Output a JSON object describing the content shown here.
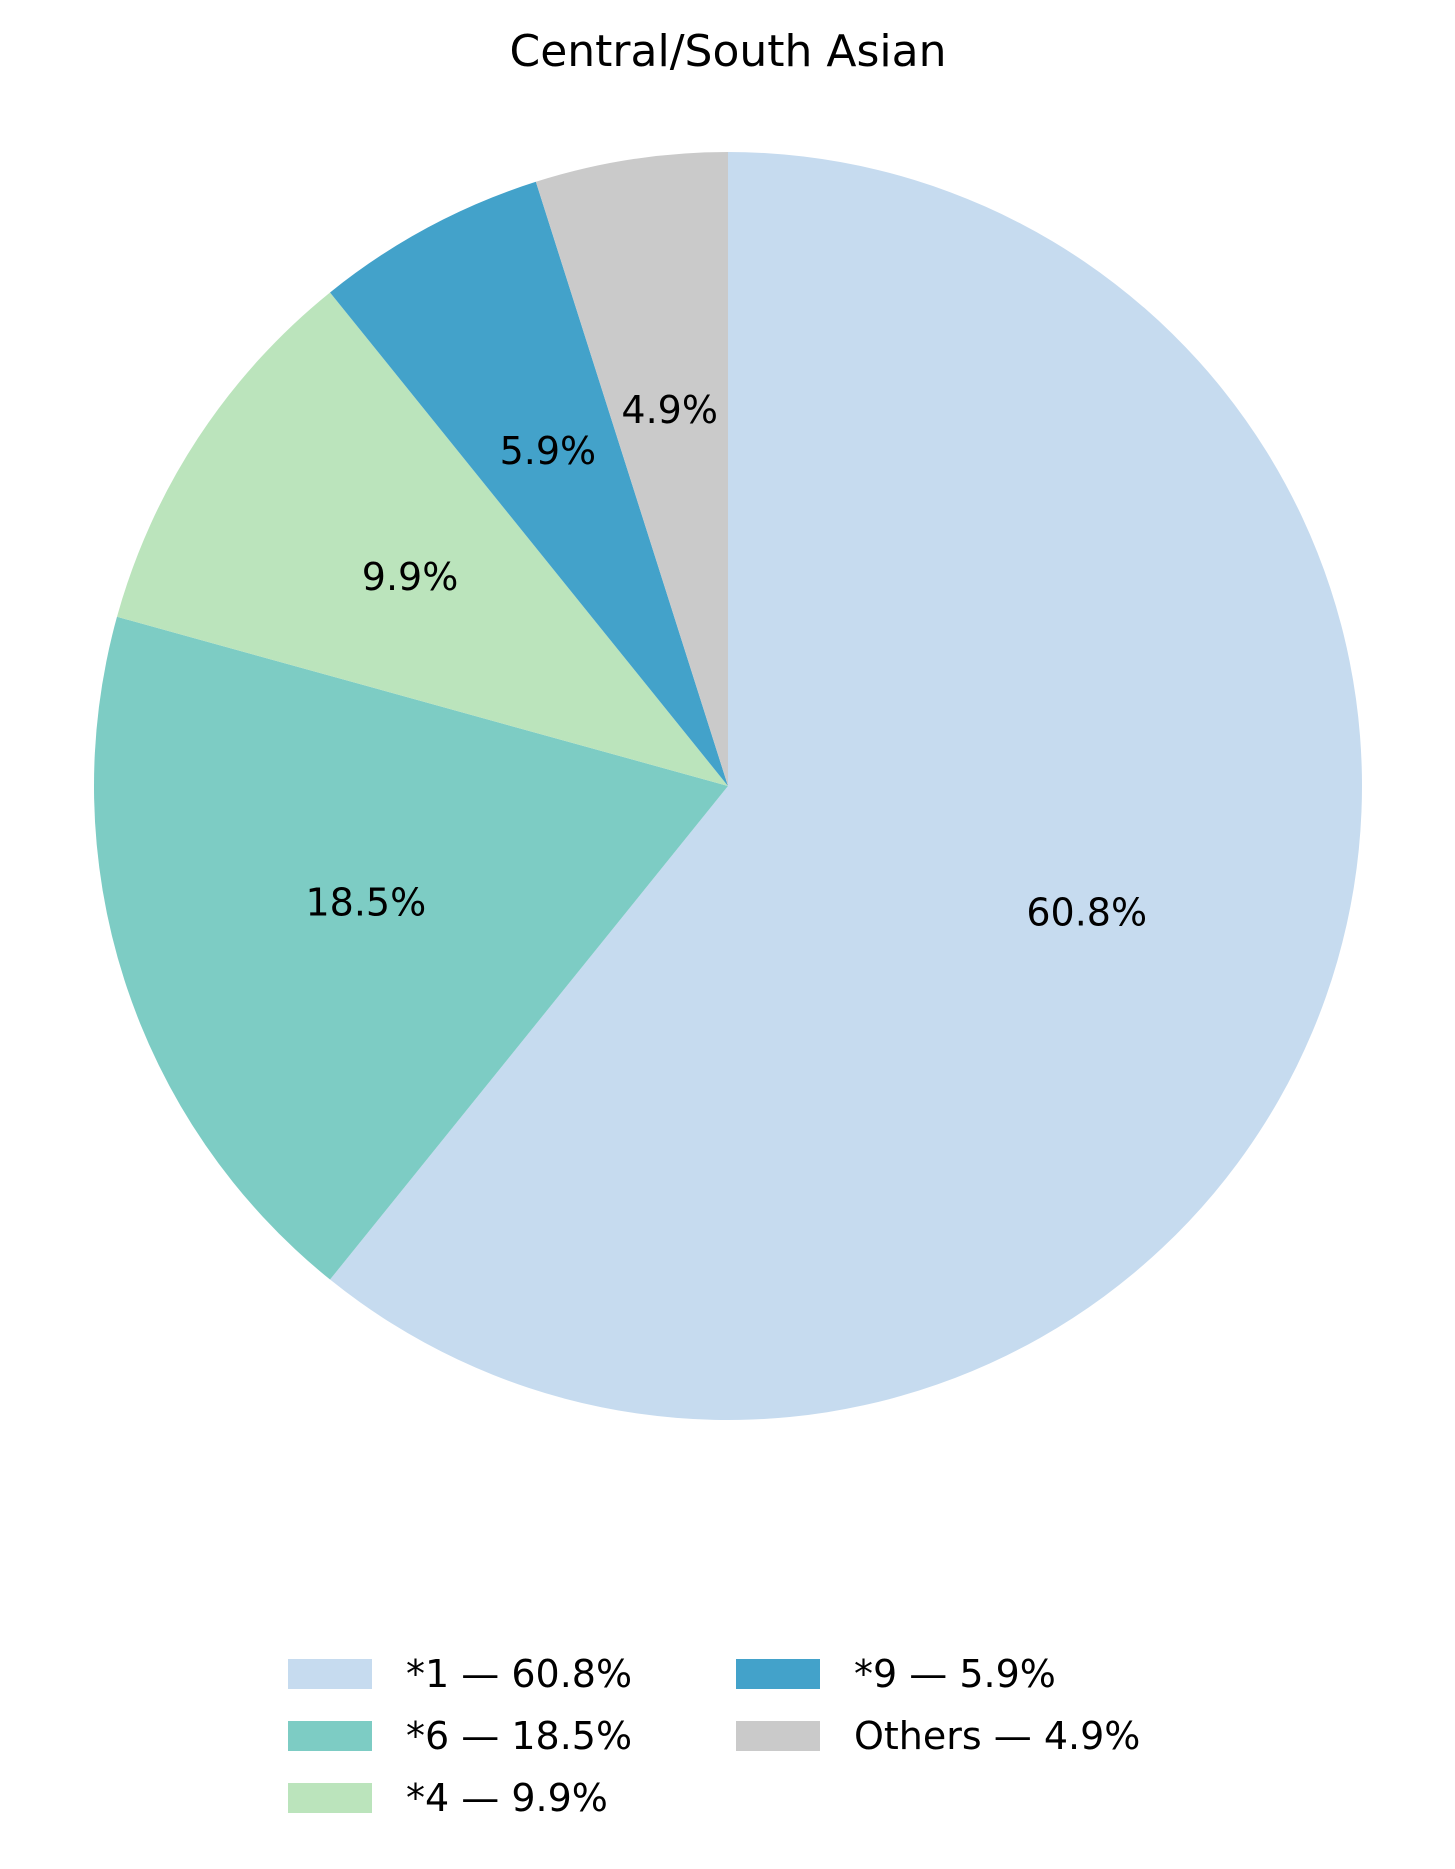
{
  "chart_data": {
    "type": "pie",
    "title": "Central/South Asian",
    "start_angle_deg": 90,
    "direction": "clockwise",
    "legend_position": "bottom",
    "legend_columns": 2,
    "slices": [
      {
        "name": "*1",
        "value": 60.8,
        "label": "60.8%",
        "legend": "*1 — 60.8%",
        "color": "#c6dbef"
      },
      {
        "name": "*6",
        "value": 18.5,
        "label": "18.5%",
        "legend": "*6 — 18.5%",
        "color": "#7dccc4"
      },
      {
        "name": "*4",
        "value": 9.9,
        "label": "9.9%",
        "legend": "*4 — 9.9%",
        "color": "#bbe4bc"
      },
      {
        "name": "*9",
        "value": 5.9,
        "label": "5.9%",
        "legend": "*9 — 5.9%",
        "color": "#43a2ca"
      },
      {
        "name": "Others",
        "value": 4.9,
        "label": "4.9%",
        "legend": "Others — 4.9%",
        "color": "#cacaca"
      }
    ]
  }
}
